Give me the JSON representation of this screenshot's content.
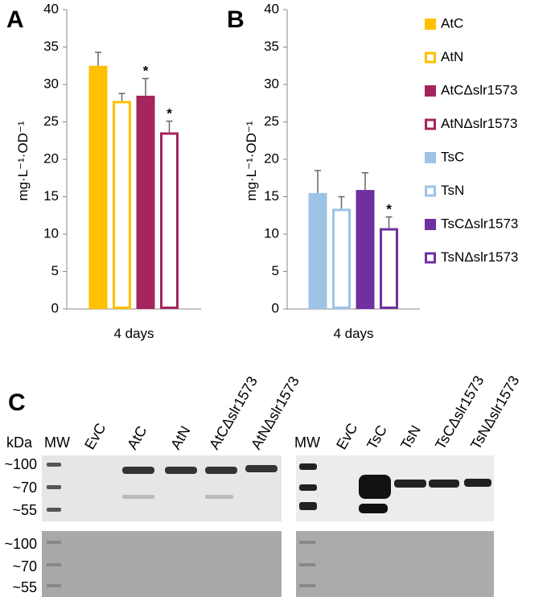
{
  "chart_data": [
    {
      "type": "bar",
      "panel": "A",
      "ylabel": "mg·L⁻¹·OD⁻¹",
      "categories": [
        "4 days"
      ],
      "ylim": [
        0,
        40
      ],
      "yticks": [
        0,
        5,
        10,
        15,
        20,
        25,
        30,
        35,
        40
      ],
      "series": [
        {
          "name": "AtC",
          "color": "#ffc000",
          "hollow": false,
          "values": [
            32.5
          ],
          "errors": [
            1.8
          ]
        },
        {
          "name": "AtN",
          "color": "#ffc000",
          "hollow": true,
          "values": [
            27.8
          ],
          "errors": [
            1.0
          ]
        },
        {
          "name": "AtCΔslr1573",
          "color": "#a5245e",
          "hollow": false,
          "values": [
            28.5
          ],
          "errors": [
            2.3
          ],
          "annotation": "*"
        },
        {
          "name": "AtNΔslr1573",
          "color": "#a5245e",
          "hollow": true,
          "values": [
            23.6
          ],
          "errors": [
            1.5
          ],
          "annotation": "*"
        }
      ]
    },
    {
      "type": "bar",
      "panel": "B",
      "ylabel": "mg·L⁻¹·OD⁻¹",
      "categories": [
        "4 days"
      ],
      "ylim": [
        0,
        40
      ],
      "yticks": [
        0,
        5,
        10,
        15,
        20,
        25,
        30,
        35,
        40
      ],
      "series": [
        {
          "name": "TsC",
          "color": "#9dc3e6",
          "hollow": false,
          "values": [
            15.5
          ],
          "errors": [
            3.0
          ]
        },
        {
          "name": "TsN",
          "color": "#9dc3e6",
          "hollow": true,
          "values": [
            13.4
          ],
          "errors": [
            1.6
          ]
        },
        {
          "name": "TsCΔslr1573",
          "color": "#7030a0",
          "hollow": false,
          "values": [
            15.9
          ],
          "errors": [
            2.3
          ]
        },
        {
          "name": "TsNΔslr1573",
          "color": "#7030a0",
          "hollow": true,
          "values": [
            10.8
          ],
          "errors": [
            1.5
          ],
          "annotation": "*"
        }
      ]
    }
  ],
  "blot": {
    "panel": "C",
    "unit": "kDa",
    "left_lanes": [
      "MW",
      "EvC",
      "AtC",
      "AtN",
      "AtCΔslr1573",
      "AtNΔslr1573"
    ],
    "right_lanes": [
      "MW",
      "EvC",
      "TsC",
      "TsN",
      "TsCΔslr1573",
      "TsNΔslr1573"
    ],
    "markers": [
      "~100",
      "~70",
      "~55"
    ]
  }
}
